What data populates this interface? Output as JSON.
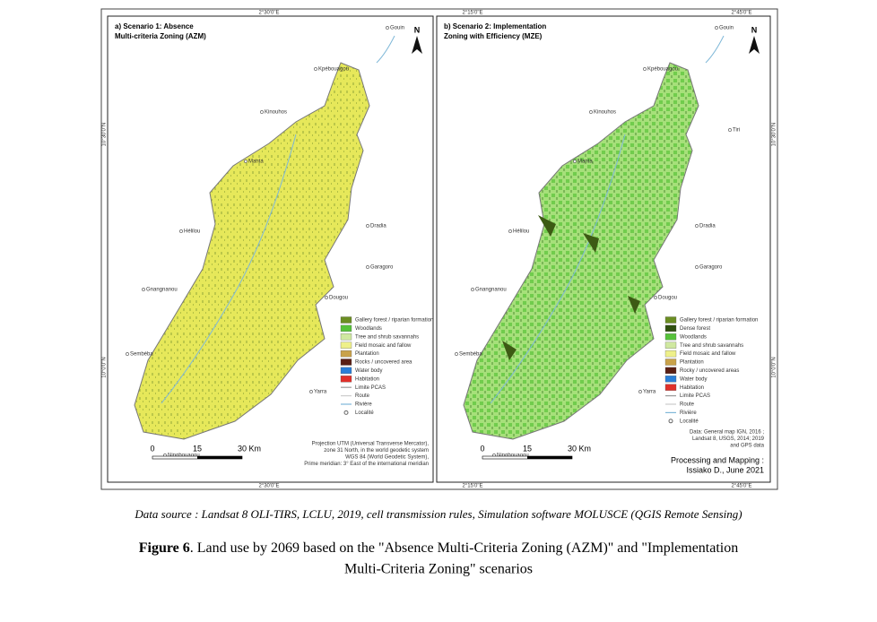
{
  "maps": [
    {
      "title": [
        "a) Scenario 1: Absence",
        "Multi-criteria Zoning (AZM)"
      ],
      "north": "N",
      "top_coords": [
        "2°30'0\"E"
      ],
      "bottom_coords": [
        "2°30'0\"E"
      ],
      "side_coords": [
        "10°30'0\"N",
        "10°0'0\"N"
      ],
      "places": [
        "Gouin",
        "Kpébouagou",
        "Kinouhos",
        "Manta",
        "Hélilou",
        "Dradia",
        "Garagoro",
        "Gnangnanou",
        "Dougou",
        "Sembéba",
        "Yarra",
        "Ningbouaoou"
      ],
      "legend": [
        "Gallery forest / riparian formation",
        "Woodlands",
        "Tree and shrub savannahs",
        "Field mosaic and fallow",
        "Plantation",
        "Rocks / uncovered area",
        "Water body",
        "Habitation",
        "Limite PCAS",
        "Route",
        "Rivière",
        "Localité"
      ],
      "scale": [
        "0",
        "15",
        "30 Km"
      ],
      "note": [
        "Projection UTM (Universal Transverse Mercator),",
        "zone 31 North, in the world geodetic system",
        "WGS 84 (World Geodetic System),",
        "Prime meridian: 3° East of the international meridian"
      ]
    },
    {
      "title": [
        "b) Scenario 2: Implementation",
        "Zoning with Efficiency (MZE)"
      ],
      "north": "N",
      "top_coords": [
        "2°15'0\"E",
        "2°45'0\"E"
      ],
      "bottom_coords": [
        "2°15'0\"E",
        "2°45'0\"E"
      ],
      "side_coords": [
        "10°30'0\"N",
        "10°0'0\"N"
      ],
      "places": [
        "Gouin",
        "Kpébouagou",
        "Kinouhos",
        "Manta",
        "Hélilou",
        "Dradia",
        "Garagoro",
        "Gnangnanou",
        "Dougou",
        "Sembéba",
        "Yarra",
        "Ningbouaoou",
        "Tiri"
      ],
      "legend": [
        "Gallery forest / riparian formation",
        "Dense forest",
        "Woodlands",
        "Tree and shrub savannahs",
        "Field mosaic and fallow",
        "Plantation",
        "Rocky / uncovered areas",
        "Water body",
        "Habitation",
        "Limite PCAS",
        "Route",
        "Rivière",
        "Localité"
      ],
      "scale": [
        "0",
        "15",
        "30 Km"
      ],
      "note": [
        "Data: General map IGN, 2016 ;",
        "Landsat 8, USGS, 2014; 2019",
        "and GPS data"
      ],
      "credit": [
        "Processing and Mapping :",
        "Issiako D., June 2021"
      ]
    }
  ],
  "data_source": "Data source : Landsat 8 OLI-TIRS, LCLU, 2019, cell transmission rules, Simulation software MOLUSCE (QGIS Remote Sensing)",
  "caption": {
    "label": "Figure 6",
    "text": [
      ". Land use by 2069 based on the \"Absence Multi-Criteria Zoning (AZM)\" and \"Implementation",
      "Multi-Criteria Zoning\" scenarios"
    ]
  }
}
